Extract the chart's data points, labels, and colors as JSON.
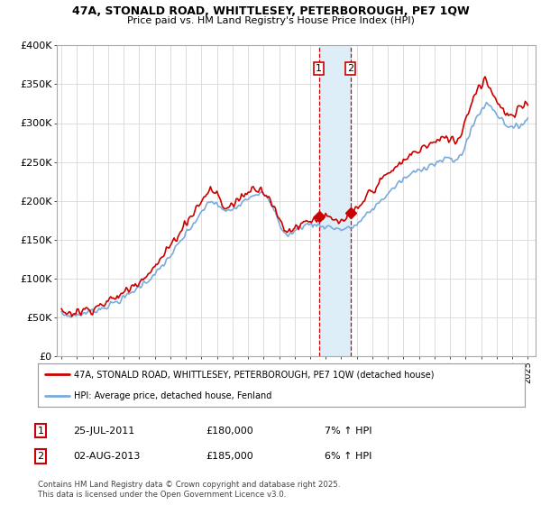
{
  "title": "47A, STONALD ROAD, WHITTLESEY, PETERBOROUGH, PE7 1QW",
  "subtitle": "Price paid vs. HM Land Registry's House Price Index (HPI)",
  "ylim": [
    0,
    400000
  ],
  "yticks": [
    0,
    50000,
    100000,
    150000,
    200000,
    250000,
    300000,
    350000,
    400000
  ],
  "ytick_labels": [
    "£0",
    "£50K",
    "£100K",
    "£150K",
    "£200K",
    "£250K",
    "£300K",
    "£350K",
    "£400K"
  ],
  "sale1_date_label": "25-JUL-2011",
  "sale1_price": 180000,
  "sale1_price_label": "£180,000",
  "sale1_hpi_label": "7% ↑ HPI",
  "sale2_date_label": "02-AUG-2013",
  "sale2_price": 185000,
  "sale2_price_label": "£185,000",
  "sale2_hpi_label": "6% ↑ HPI",
  "sale1_x": 2011.56,
  "sale2_x": 2013.59,
  "legend_line1": "47A, STONALD ROAD, WHITTLESEY, PETERBOROUGH, PE7 1QW (detached house)",
  "legend_line2": "HPI: Average price, detached house, Fenland",
  "footnote": "Contains HM Land Registry data © Crown copyright and database right 2025.\nThis data is licensed under the Open Government Licence v3.0.",
  "line_red_color": "#cc0000",
  "line_blue_color": "#7aabdb",
  "shade_color": "#ddeef8",
  "grid_color": "#d8d8d8"
}
